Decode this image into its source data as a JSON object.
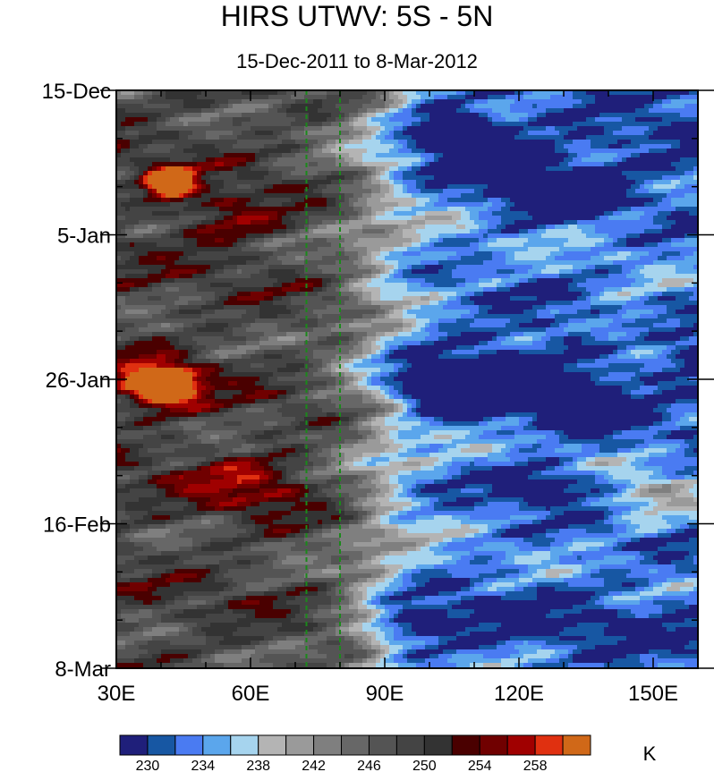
{
  "chart_data": {
    "type": "heatmap",
    "title": "HIRS UTWV: 5S - 5N",
    "subtitle": "15-Dec-2011 to 8-Mar-2012",
    "x_tick_labels": [
      "30E",
      "60E",
      "90E",
      "120E",
      "150E"
    ],
    "x_ticks": [
      30,
      60,
      90,
      120,
      150
    ],
    "xlim": [
      30,
      160
    ],
    "y_tick_labels": [
      "15-Dec",
      "5-Jan",
      "26-Jan",
      "16-Feb",
      "8-Mar"
    ],
    "y_ticks": [
      "2011-12-15",
      "2012-01-05",
      "2012-01-26",
      "2012-02-16",
      "2012-03-08"
    ],
    "ylim": [
      "2011-12-15",
      "2012-03-08"
    ],
    "reference_lines_lon": [
      72.5,
      80
    ],
    "colorbar": {
      "unit": "K",
      "labels": [
        "230",
        "234",
        "238",
        "242",
        "246",
        "250",
        "254",
        "258"
      ],
      "levels": [
        228,
        230,
        232,
        234,
        236,
        238,
        240,
        242,
        244,
        246,
        248,
        250,
        252,
        254,
        256,
        258,
        260
      ],
      "colors": [
        "#1f1f7a",
        "#1757a3",
        "#4a7bf2",
        "#5ba6ec",
        "#a6d4ee",
        "#b4b4b4",
        "#9a9a9a",
        "#7f7f7f",
        "#676767",
        "#545454",
        "#444444",
        "#333333",
        "#4a0000",
        "#700000",
        "#a00000",
        "#e03010",
        "#d06818"
      ]
    }
  }
}
